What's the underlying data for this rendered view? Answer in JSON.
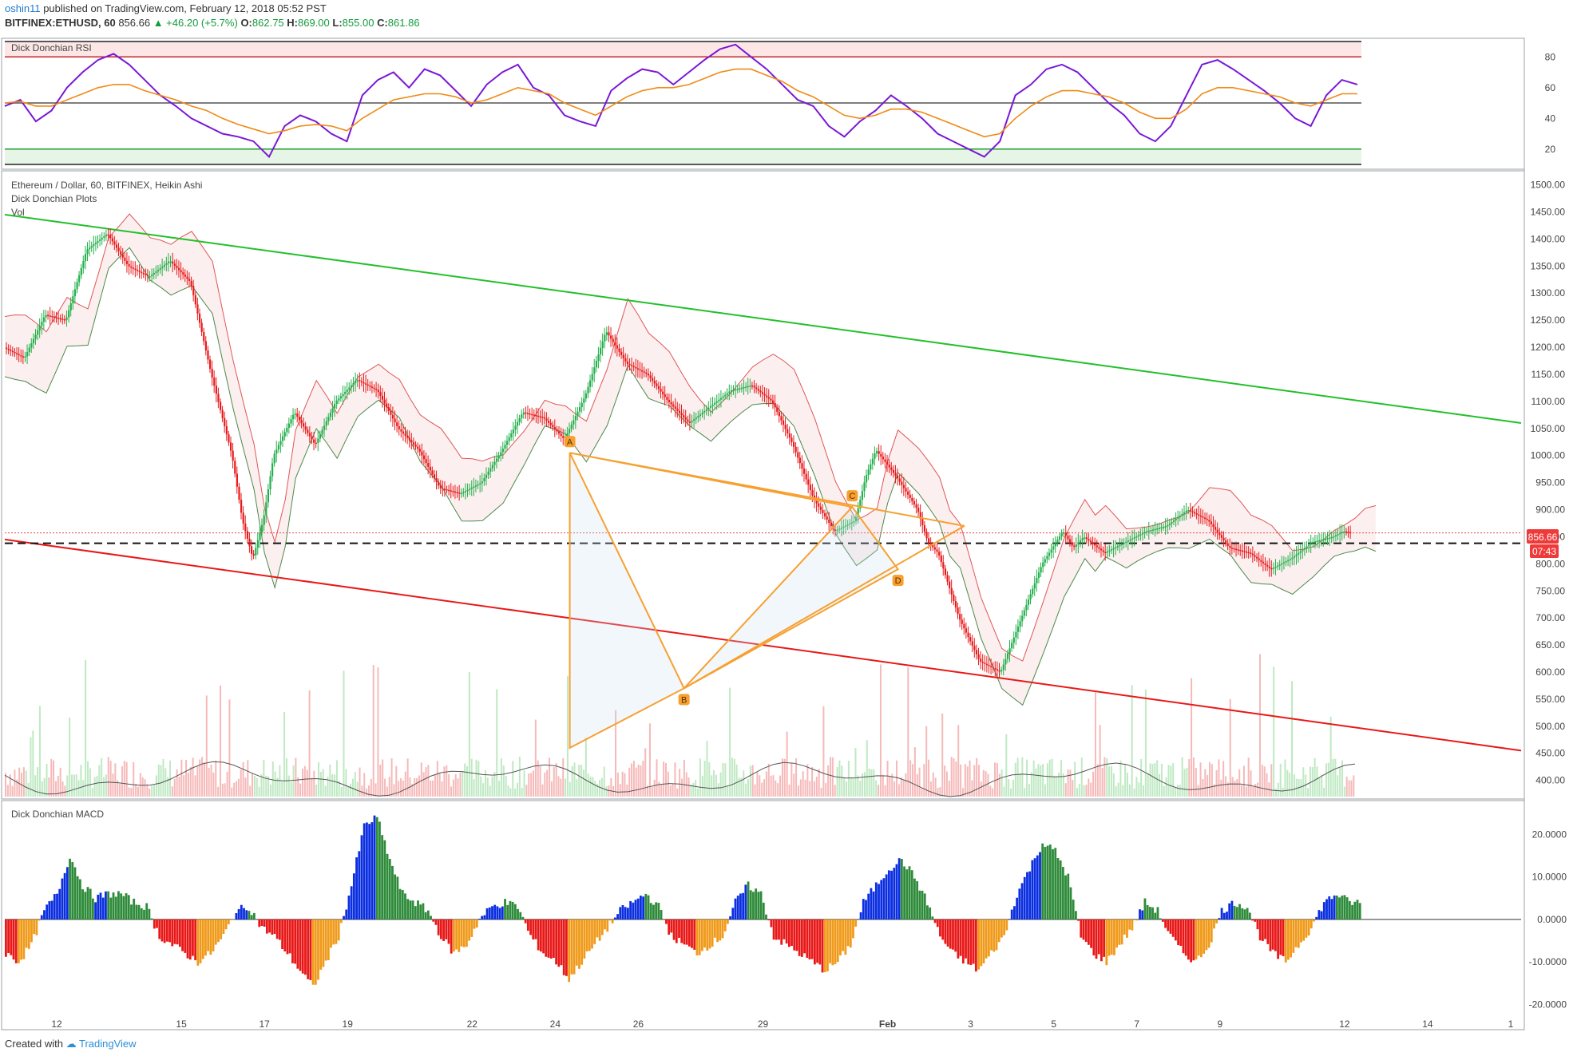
{
  "header": {
    "author": "oshin11",
    "published": "published on TradingView.com, February 12, 2018 05:52 PST",
    "symbol": "BITFINEX:ETHUSD, 60",
    "price": "856.66",
    "change": "▲ +46.20 (+5.7%)",
    "o_label": "O:",
    "o_val": "862.75",
    "h_label": "H:",
    "h_val": "869.00",
    "l_label": "L:",
    "l_val": "855.00",
    "c_label": "C:",
    "c_val": "861.86"
  },
  "panels": {
    "rsi_title": "Dick Donchian RSI",
    "main_title": "Ethereum / Dollar, 60, BITFINEX, Heikin Ashi",
    "main_sub1": "Dick Donchian Plots",
    "main_sub2": "Vol",
    "macd_title": "Dick Donchian MACD"
  },
  "price_tag": "856.66",
  "time_tag": "07:43",
  "pattern_points": [
    {
      "label": "A",
      "x": 3.1,
      "y": 1005
    },
    {
      "label": "B",
      "x": 5.85,
      "y": 570
    },
    {
      "label": "C",
      "x": 9.9,
      "y": 905
    },
    {
      "label": "D",
      "x": 11,
      "y": 790
    }
  ],
  "footer": {
    "created": "Created with",
    "brand": "TradingView"
  },
  "colors": {
    "up": "#22b04b",
    "down": "#e8191b",
    "rsi_line": "#7a18d6",
    "rsi_signal": "#f08a14",
    "pattern": "#f7a030",
    "channel_top": "#22c02a",
    "channel_bottom": "#e81818"
  },
  "chart_data": [
    {
      "type": "line",
      "title": "Dick Donchian RSI",
      "ylim": [
        10,
        90
      ],
      "y_ticks": [
        80,
        60,
        40,
        20
      ],
      "levels": [
        90,
        80,
        50,
        20,
        10
      ],
      "series": [
        {
          "values": [
            48,
            52,
            38,
            45,
            60,
            70,
            78,
            82,
            75,
            65,
            55,
            48,
            40,
            35,
            30,
            28,
            25,
            15,
            35,
            42,
            38,
            30,
            25,
            55,
            65,
            70,
            60,
            72,
            68,
            58,
            48,
            62,
            70,
            75,
            60,
            55,
            42,
            38,
            35,
            58,
            66,
            72,
            70,
            62,
            70,
            78,
            85,
            88,
            80,
            72,
            62,
            52,
            48,
            35,
            28,
            38,
            45,
            55,
            48,
            40,
            30,
            25,
            20,
            15,
            25,
            55,
            62,
            72,
            75,
            70,
            60,
            50,
            42,
            30,
            25,
            35,
            55,
            75,
            78,
            72,
            65,
            58,
            50,
            40,
            35,
            55,
            65,
            62
          ]
        },
        {
          "values": [
            50,
            51,
            48,
            48,
            52,
            56,
            60,
            62,
            62,
            58,
            55,
            52,
            48,
            45,
            40,
            36,
            33,
            30,
            32,
            35,
            36,
            35,
            32,
            40,
            46,
            52,
            54,
            56,
            56,
            54,
            50,
            52,
            56,
            60,
            58,
            56,
            50,
            46,
            42,
            48,
            54,
            58,
            60,
            60,
            62,
            66,
            70,
            72,
            72,
            68,
            64,
            58,
            54,
            48,
            42,
            40,
            42,
            46,
            46,
            44,
            40,
            36,
            32,
            28,
            30,
            40,
            48,
            54,
            58,
            58,
            56,
            54,
            50,
            44,
            40,
            40,
            46,
            56,
            60,
            60,
            58,
            56,
            54,
            50,
            48,
            52,
            56,
            56
          ]
        }
      ]
    },
    {
      "type": "line",
      "title": "Ethereum / Dollar, 60, BITFINEX, Heikin Ashi",
      "xlabel": "",
      "ylabel": "",
      "x_ticks": [
        {
          "label": "12",
          "x": -9.25
        },
        {
          "label": "15",
          "x": -6.25
        },
        {
          "label": "17",
          "x": -4.25
        },
        {
          "label": "19",
          "x": -2.25
        },
        {
          "label": "22",
          "x": 0.75
        },
        {
          "label": "24",
          "x": 2.75
        },
        {
          "label": "26",
          "x": 4.75
        },
        {
          "label": "29",
          "x": 7.75
        },
        {
          "label": "Feb",
          "x": 10.75
        },
        {
          "label": "3",
          "x": 12.75
        },
        {
          "label": "5",
          "x": 14.75
        },
        {
          "label": "7",
          "x": 16.75
        },
        {
          "label": "9",
          "x": 18.75
        },
        {
          "label": "12",
          "x": 21.75
        },
        {
          "label": "14",
          "x": 23.75
        },
        {
          "label": "1",
          "x": 25.75
        }
      ],
      "y_ticks": [
        1500,
        1450,
        1400,
        1350,
        1300,
        1250,
        1200,
        1150,
        1100,
        1050,
        1000,
        950,
        900,
        850,
        800,
        750,
        700,
        650,
        600,
        550,
        500,
        450,
        400
      ],
      "ylim": [
        370,
        1520
      ],
      "series": [
        {
          "x": [
            -10.5,
            -10,
            -9.5,
            -9,
            -8.5,
            -8,
            -7.5,
            -7,
            -6.5,
            -6,
            -5.5,
            -5,
            -4.75,
            -4.5,
            -4.25,
            -4,
            -3.5,
            -3,
            -2.5,
            -2,
            -1.5,
            -1,
            -0.5,
            0,
            0.5,
            1,
            1.5,
            2,
            2.5,
            3,
            3.5,
            4,
            4.5,
            5,
            5.5,
            6,
            6.5,
            7,
            7.5,
            8,
            8.5,
            9,
            9.5,
            10,
            10.25,
            10.5,
            11,
            11.5,
            11.75,
            12,
            12.5,
            13,
            13.5,
            14,
            14.5,
            15,
            15.25,
            15.5,
            16,
            16.5,
            17,
            17.5,
            18,
            18.5,
            19,
            19.5,
            20,
            20.5,
            21,
            21.5,
            21.75,
            22
          ],
          "values": [
            1200,
            1180,
            1260,
            1250,
            1380,
            1410,
            1350,
            1330,
            1360,
            1320,
            1150,
            1000,
            880,
            810,
            880,
            1000,
            1080,
            1020,
            1100,
            1140,
            1120,
            1050,
            1010,
            940,
            930,
            950,
            1010,
            1080,
            1070,
            1030,
            1110,
            1230,
            1170,
            1150,
            1100,
            1060,
            1090,
            1120,
            1130,
            1100,
            1020,
            920,
            860,
            880,
            960,
            1010,
            960,
            900,
            840,
            820,
            700,
            620,
            600,
            700,
            800,
            860,
            830,
            850,
            820,
            840,
            860,
            870,
            900,
            880,
            830,
            820,
            790,
            810,
            840,
            850,
            860,
            857
          ]
        }
      ],
      "channel_top": [
        [
          -10.5,
          1445
        ],
        [
          26,
          1060
        ]
      ],
      "channel_bottom": [
        [
          -10.5,
          845
        ],
        [
          26,
          455
        ]
      ],
      "dashed_level": 838,
      "price_line": 857
    },
    {
      "type": "bar",
      "title": "Dick Donchian MACD",
      "ylim": [
        -25,
        27
      ],
      "y_ticks": [
        20,
        10,
        0,
        -10,
        -20
      ],
      "values": [
        -8,
        -10,
        -6,
        2,
        6,
        15,
        8,
        5,
        6,
        6,
        4,
        3,
        -4,
        -6,
        -8,
        -10,
        -8,
        -4,
        2,
        3,
        -2,
        -4,
        -8,
        -12,
        -16,
        -10,
        -4,
        8,
        22,
        24,
        14,
        6,
        4,
        2,
        -4,
        -8,
        -6,
        0,
        3,
        4,
        3,
        -4,
        -8,
        -10,
        -14,
        -10,
        -6,
        -2,
        2,
        4,
        6,
        3,
        -4,
        -6,
        -8,
        -6,
        -4,
        4,
        8,
        6,
        -4,
        -6,
        -8,
        -10,
        -12,
        -10,
        -6,
        4,
        8,
        12,
        14,
        10,
        4,
        -4,
        -8,
        -10,
        -12,
        -8,
        -4,
        6,
        12,
        18,
        16,
        10,
        -4,
        -8,
        -10,
        -6,
        -2,
        4,
        2,
        -4,
        -8,
        -10,
        -6,
        2,
        4,
        3,
        -4,
        -8,
        -10,
        -6,
        -2,
        4,
        6,
        4
      ]
    }
  ]
}
